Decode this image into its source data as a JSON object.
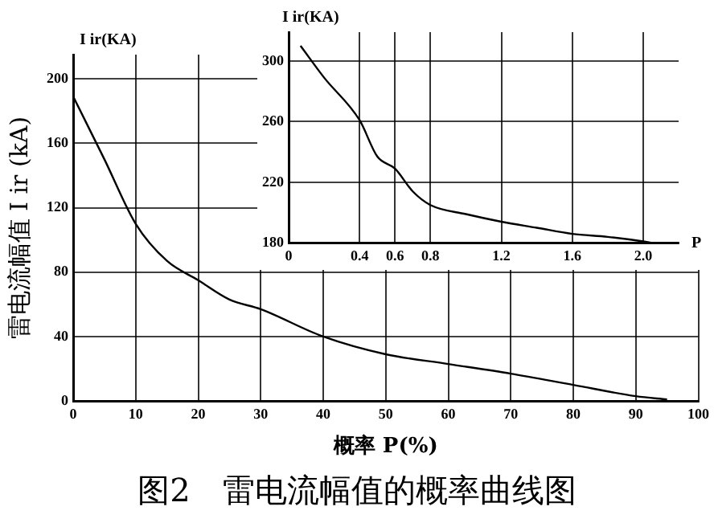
{
  "chart_data": [
    {
      "type": "line",
      "title": "图2　雷电流幅值的概率曲线图",
      "xlabel": "概率 P(%)",
      "ylabel": "雷电流幅值 I ir (kA)",
      "annotations": [
        "I ir(KA)"
      ],
      "x": [
        0,
        5,
        10,
        15,
        20,
        25,
        30,
        40,
        50,
        60,
        70,
        80,
        90,
        95
      ],
      "series": [
        {
          "color": "#000000",
          "values": [
            189,
            150,
            110,
            87,
            75,
            63,
            57,
            40,
            29,
            23,
            17,
            10,
            3,
            1
          ]
        }
      ],
      "xlim": [
        0,
        100
      ],
      "ylim": [
        0,
        215
      ],
      "xticks": [
        0,
        10,
        20,
        30,
        40,
        50,
        60,
        70,
        80,
        90,
        100
      ],
      "yticks": [
        0,
        40,
        80,
        120,
        160,
        200
      ],
      "grid": true,
      "legend": false,
      "marker": "none"
    },
    {
      "type": "line",
      "xlabel": "P",
      "ylabel": "I ir(KA)",
      "x": [
        0.067,
        0.2,
        0.4,
        0.5,
        0.6,
        0.7,
        0.8,
        1.0,
        1.2,
        1.4,
        1.6,
        1.8,
        2.0,
        2.05
      ],
      "series": [
        {
          "color": "#000000",
          "values": [
            310,
            289,
            261,
            237,
            229,
            214,
            205,
            199,
            194,
            190,
            186,
            184,
            181,
            180
          ]
        }
      ],
      "xlim": [
        0,
        2.2
      ],
      "ylim": [
        180,
        319
      ],
      "xticks": [
        0,
        0.4,
        0.6,
        0.8,
        1.2,
        1.6,
        {
          "value": 2.0,
          "label": "2.0"
        }
      ],
      "yticks": [
        180,
        220,
        260,
        300
      ],
      "grid": true,
      "legend": false,
      "marker": "none"
    }
  ]
}
